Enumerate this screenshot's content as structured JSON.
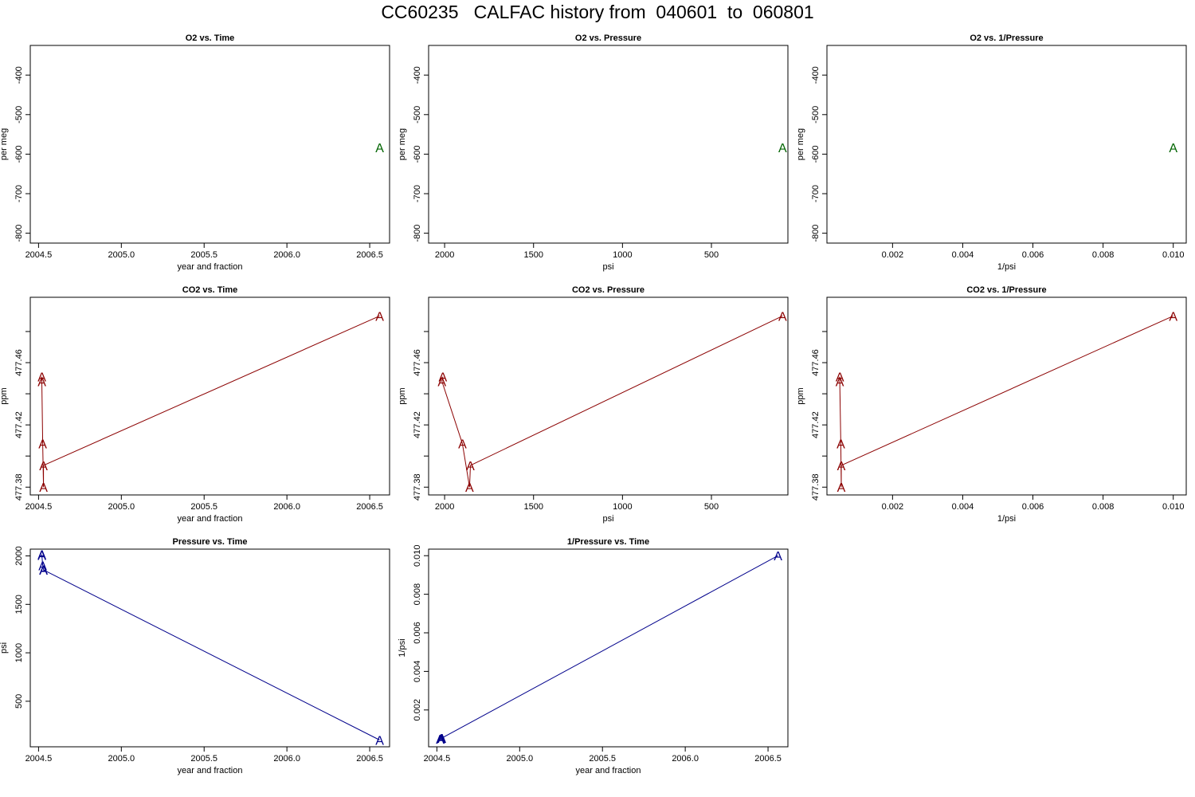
{
  "page_title": "CC60235   CALFAC history from  040601  to  060801",
  "colors": {
    "o2": "#006400",
    "co2": "#8b0000",
    "pressure": "#00008b",
    "axis": "#000000"
  },
  "point_symbol": "A",
  "chart_data": [
    {
      "type": "line",
      "title": "O2 vs. Time",
      "xlabel": "year and fraction",
      "ylabel": "per meg",
      "xlim": [
        2004.45,
        2006.62
      ],
      "ylim": [
        -825,
        -325
      ],
      "reverse_x": false,
      "xticks": [
        2004.5,
        2005.0,
        2005.5,
        2006.0,
        2006.5
      ],
      "xtick_labels": [
        "2004.5",
        "2005.0",
        "2005.5",
        "2006.0",
        "2006.5"
      ],
      "yticks": [
        -400,
        -500,
        -600,
        -700,
        -800
      ],
      "ytick_labels": [
        "-400",
        "-500",
        "-600",
        "-700",
        "-800"
      ],
      "series": [
        {
          "name": "O2",
          "color_key": "o2",
          "x": [
            2006.56
          ],
          "y": [
            -583
          ]
        }
      ]
    },
    {
      "type": "line",
      "title": "O2 vs. Pressure",
      "xlabel": "psi",
      "ylabel": "per meg",
      "xlim": [
        2090,
        70
      ],
      "ylim": [
        -825,
        -325
      ],
      "reverse_x": true,
      "xticks": [
        2000,
        1500,
        1000,
        500
      ],
      "xtick_labels": [
        "2000",
        "1500",
        "1000",
        "500"
      ],
      "yticks": [
        -400,
        -500,
        -600,
        -700,
        -800
      ],
      "ytick_labels": [
        "-400",
        "-500",
        "-600",
        "-700",
        "-800"
      ],
      "series": [
        {
          "name": "O2",
          "color_key": "o2",
          "x": [
            100
          ],
          "y": [
            -583
          ]
        }
      ]
    },
    {
      "type": "line",
      "title": "O2 vs. 1/Pressure",
      "xlabel": "1/psi",
      "ylabel": "per meg",
      "xlim": [
        0.00013,
        0.01037
      ],
      "ylim": [
        -825,
        -325
      ],
      "reverse_x": false,
      "xticks": [
        0.002,
        0.004,
        0.006,
        0.008,
        0.01
      ],
      "xtick_labels": [
        "0.002",
        "0.004",
        "0.006",
        "0.008",
        "0.010"
      ],
      "yticks": [
        -400,
        -500,
        -600,
        -700,
        -800
      ],
      "ytick_labels": [
        "-400",
        "-500",
        "-600",
        "-700",
        "-800"
      ],
      "series": [
        {
          "name": "O2",
          "color_key": "o2",
          "x": [
            0.01
          ],
          "y": [
            -583
          ]
        }
      ]
    },
    {
      "type": "line",
      "title": "CO2 vs. Time",
      "xlabel": "year and fraction",
      "ylabel": "ppm",
      "xlim": [
        2004.45,
        2006.62
      ],
      "ylim": [
        477.375,
        477.502
      ],
      "reverse_x": false,
      "xticks": [
        2004.5,
        2005.0,
        2005.5,
        2006.0,
        2006.5
      ],
      "xtick_labels": [
        "2004.5",
        "2005.0",
        "2005.5",
        "2006.0",
        "2006.5"
      ],
      "yticks": [
        477.38,
        477.4,
        477.42,
        477.44,
        477.46,
        477.48
      ],
      "ytick_labels": [
        "477.38",
        "",
        "477.42",
        "",
        "477.46",
        ""
      ],
      "series": [
        {
          "name": "CO2",
          "color_key": "co2",
          "x": [
            2004.52,
            2004.52,
            2004.525,
            2004.53,
            2004.53,
            2006.56
          ],
          "y": [
            477.451,
            477.448,
            477.408,
            477.38,
            477.394,
            477.49
          ]
        }
      ]
    },
    {
      "type": "line",
      "title": "CO2 vs. Pressure",
      "xlabel": "psi",
      "ylabel": "ppm",
      "xlim": [
        2090,
        70
      ],
      "ylim": [
        477.375,
        477.502
      ],
      "reverse_x": true,
      "xticks": [
        2000,
        1500,
        1000,
        500
      ],
      "xtick_labels": [
        "2000",
        "1500",
        "1000",
        "500"
      ],
      "yticks": [
        477.38,
        477.4,
        477.42,
        477.44,
        477.46,
        477.48
      ],
      "ytick_labels": [
        "477.38",
        "",
        "477.42",
        "",
        "477.46",
        ""
      ],
      "series": [
        {
          "name": "CO2",
          "color_key": "co2",
          "x": [
            2010,
            2015,
            1900,
            1860,
            1855,
            100
          ],
          "y": [
            477.451,
            477.448,
            477.408,
            477.38,
            477.394,
            477.49
          ]
        }
      ]
    },
    {
      "type": "line",
      "title": "CO2 vs. 1/Pressure",
      "xlabel": "1/psi",
      "ylabel": "ppm",
      "xlim": [
        0.00013,
        0.01037
      ],
      "ylim": [
        477.375,
        477.502
      ],
      "reverse_x": false,
      "xticks": [
        0.002,
        0.004,
        0.006,
        0.008,
        0.01
      ],
      "xtick_labels": [
        "0.002",
        "0.004",
        "0.006",
        "0.008",
        "0.010"
      ],
      "yticks": [
        477.38,
        477.4,
        477.42,
        477.44,
        477.46,
        477.48
      ],
      "ytick_labels": [
        "477.38",
        "",
        "477.42",
        "",
        "477.46",
        ""
      ],
      "series": [
        {
          "name": "CO2",
          "color_key": "co2",
          "x": [
            0.000497,
            0.000496,
            0.000526,
            0.000538,
            0.000539,
            0.01
          ],
          "y": [
            477.451,
            477.448,
            477.408,
            477.38,
            477.394,
            477.49
          ]
        }
      ]
    },
    {
      "type": "line",
      "title": "Pressure vs. Time",
      "xlabel": "year and fraction",
      "ylabel": "psi",
      "xlim": [
        2004.45,
        2006.62
      ],
      "ylim": [
        30,
        2070
      ],
      "reverse_x": false,
      "xticks": [
        2004.5,
        2005.0,
        2005.5,
        2006.0,
        2006.5
      ],
      "xtick_labels": [
        "2004.5",
        "2005.0",
        "2005.5",
        "2006.0",
        "2006.5"
      ],
      "yticks": [
        500,
        1000,
        1500,
        2000
      ],
      "ytick_labels": [
        "500",
        "1000",
        "1500",
        "2000"
      ],
      "series": [
        {
          "name": "Pressure",
          "color_key": "pressure",
          "x": [
            2004.52,
            2004.52,
            2004.525,
            2004.53,
            2004.53,
            2006.56
          ],
          "y": [
            2010,
            2015,
            1900,
            1860,
            1855,
            100
          ]
        }
      ]
    },
    {
      "type": "line",
      "title": "1/Pressure vs. Time",
      "xlabel": "year and fraction",
      "ylabel": "1/psi",
      "xlim": [
        2004.45,
        2006.62
      ],
      "ylim": [
        9e-05,
        0.01034
      ],
      "reverse_x": false,
      "xticks": [
        2004.5,
        2005.0,
        2005.5,
        2006.0,
        2006.5
      ],
      "xtick_labels": [
        "2004.5",
        "2005.0",
        "2005.5",
        "2006.0",
        "2006.5"
      ],
      "yticks": [
        0.002,
        0.004,
        0.006,
        0.008,
        0.01
      ],
      "ytick_labels": [
        "0.002",
        "0.004",
        "0.006",
        "0.008",
        "0.010"
      ],
      "series": [
        {
          "name": "1/Pressure",
          "color_key": "pressure",
          "x": [
            2004.52,
            2004.52,
            2004.525,
            2004.53,
            2004.53,
            2006.56
          ],
          "y": [
            0.000497,
            0.000496,
            0.000526,
            0.000538,
            0.000539,
            0.01
          ]
        }
      ]
    }
  ]
}
